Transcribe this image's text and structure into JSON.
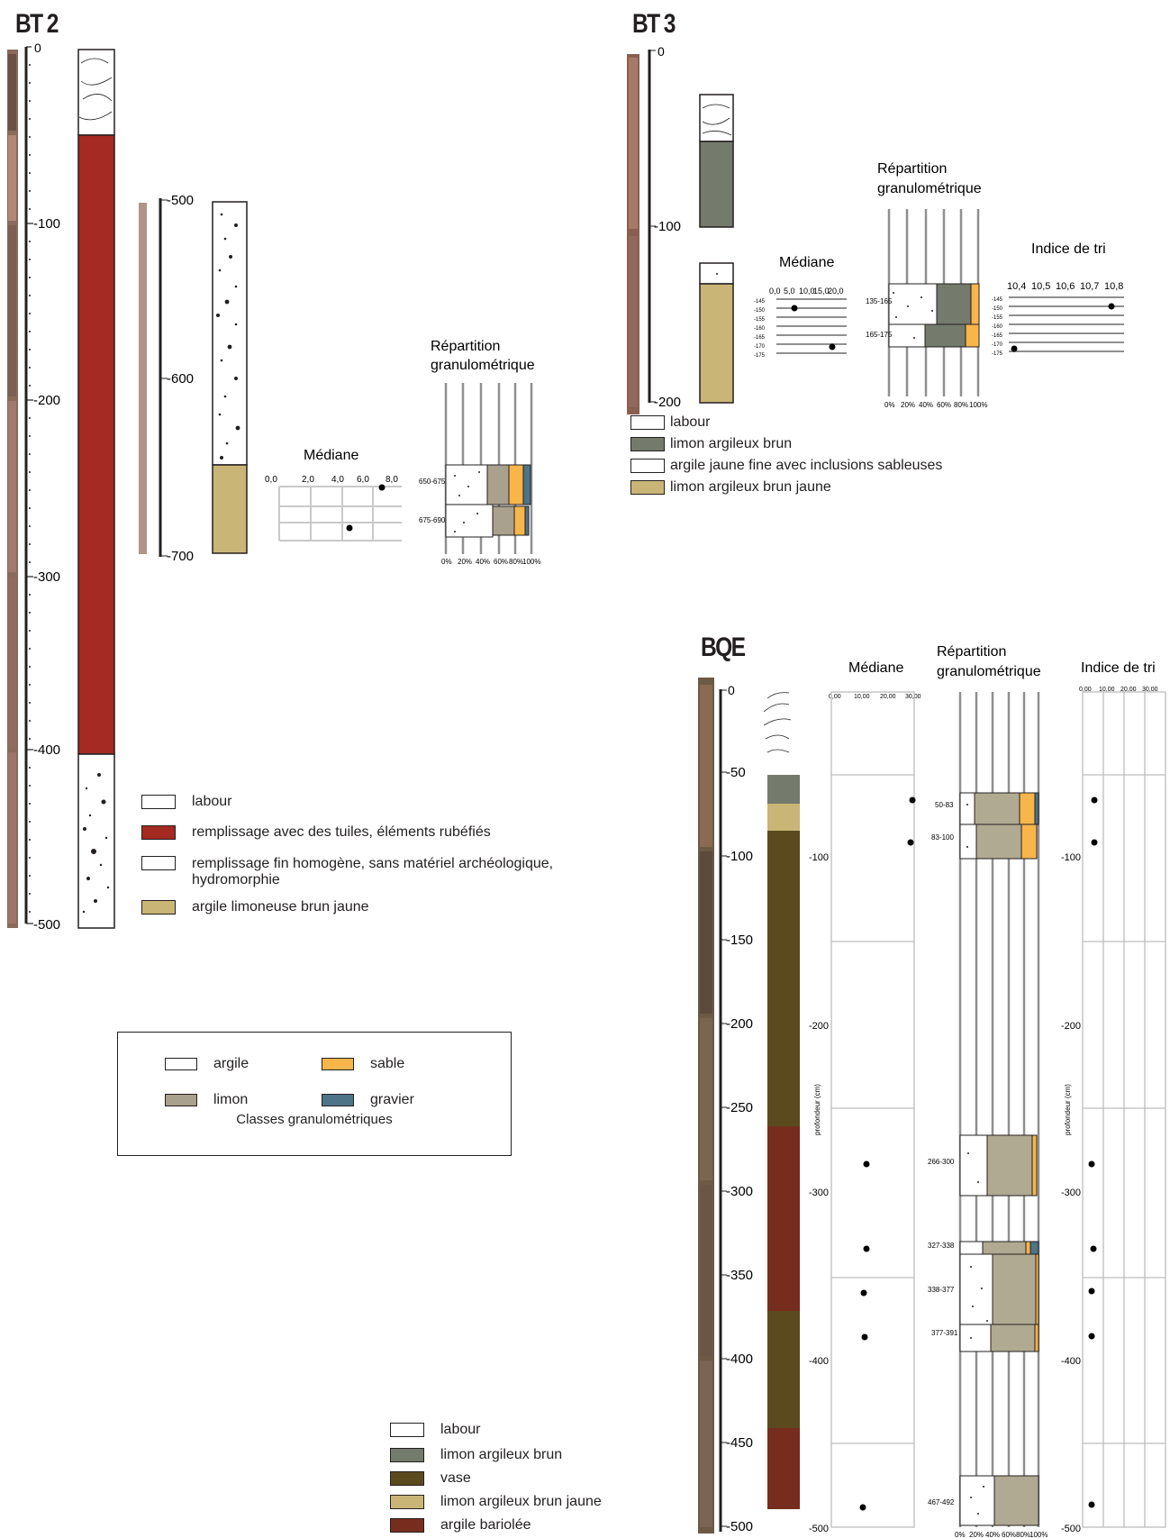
{
  "colors": {
    "red_fill": "#a52a22",
    "tan_fill": "#c9b676",
    "olive_fill": "#747a6c",
    "mud_fill": "#5a4a1d",
    "brick_fill": "#772d1d",
    "argile": "#ffffff",
    "limon": "#a9a08d",
    "sable": "#f8b54a",
    "gravier": "#4d7487",
    "bqe_limon": "#b0aa92",
    "bqe_argile_light": "#d4c78f"
  },
  "bt2": {
    "title": "BT 2",
    "depth_ticks": [
      "0",
      "-100",
      "-200",
      "-300",
      "-400",
      "-500"
    ],
    "detail_ticks": [
      "-500",
      "-600",
      "-700"
    ],
    "mediane": {
      "title": "Médiane",
      "ticks": [
        "0,0",
        "2,0",
        "4,0",
        "6,0",
        "8,0"
      ]
    },
    "repartition": {
      "title_line1": "Répartition",
      "title_line2": "granulométrique",
      "rows": [
        "650-675",
        "675-690"
      ],
      "x_ticks": [
        "0%",
        "20%",
        "40%",
        "60%",
        "80%",
        "100%"
      ]
    },
    "legend": [
      {
        "icon": "labour-icon",
        "label": "labour"
      },
      {
        "icon": "red-fill",
        "label": "remplissage avec des tuiles,  éléments rubéfiés"
      },
      {
        "icon": "dots-fill",
        "label": "remplissage fin homogène, sans matériel archéologique,",
        "label2": "hydromorphie"
      },
      {
        "icon": "tan-fill",
        "label": "argile limoneuse brun jaune"
      }
    ]
  },
  "bt3": {
    "title": "BT 3",
    "depth_ticks": [
      "0",
      "-100",
      "-200"
    ],
    "mediane": {
      "title": "Médiane",
      "ticks": [
        "0,0",
        "5,0",
        "10,0",
        "15,0",
        "20,0"
      ],
      "rows": [
        "-145",
        "-150",
        "-155",
        "-160",
        "-165",
        "-170",
        "-175"
      ]
    },
    "repartition": {
      "title_line1": "Répartition",
      "title_line2": "granulométrique",
      "rows": [
        "135-165",
        "165-175"
      ],
      "x_ticks": [
        "0%",
        "20%",
        "40%",
        "60%",
        "80%",
        "100%"
      ]
    },
    "tri": {
      "title": "Indice de tri",
      "ticks": [
        "10,4",
        "10,5",
        "10,6",
        "10,7",
        "10,8"
      ],
      "rows": [
        "-145",
        "-150",
        "-155",
        "-160",
        "-165",
        "-170",
        "-175"
      ]
    },
    "legend": [
      {
        "icon": "labour-icon",
        "label": "labour"
      },
      {
        "icon": "olive-fill",
        "label": "limon argileux brun"
      },
      {
        "icon": "white-fill",
        "label": "argile jaune fine avec inclusions sableuses"
      },
      {
        "icon": "tan-fill",
        "label": "limon argileux brun jaune"
      }
    ]
  },
  "classes": {
    "caption": "Classes granulométriques",
    "items": [
      {
        "label": "argile",
        "color": "#ffffff"
      },
      {
        "label": "sable",
        "color": "#f8b54a"
      },
      {
        "label": "limon",
        "color": "#a9a08d"
      },
      {
        "label": "gravier",
        "color": "#4d7487"
      }
    ]
  },
  "bqe": {
    "title": "BQE",
    "depth_ticks": [
      "0",
      "-50",
      "-100",
      "-150",
      "-200",
      "-250",
      "-300",
      "-350",
      "-400",
      "-450",
      "-500"
    ],
    "mediane": {
      "title": "Médiane",
      "ticks": [
        "0,00",
        "10,00",
        "20,00",
        "30,00"
      ],
      "y_ticks": [
        "-100",
        "-200",
        "-300",
        "-400",
        "-500"
      ],
      "y_label": "profondeur (cm)"
    },
    "repartition": {
      "title_line1": "Répartition",
      "title_line2": "granulométrique",
      "rows": [
        "50-83",
        "83-100",
        "266-300",
        "327-338",
        "338-377",
        "377-391",
        "467-492"
      ],
      "x_ticks": [
        "0%",
        "20%",
        "40%",
        "60%",
        "80%",
        "100%"
      ]
    },
    "tri": {
      "title": "Indice de tri",
      "ticks": [
        "0,00",
        "10,00",
        "20,00",
        "30,00"
      ],
      "y_ticks": [
        "-100",
        "-200",
        "-300",
        "-400",
        "-500"
      ],
      "y_label": "profondeur (cm)"
    },
    "legend": [
      {
        "icon": "labour-icon",
        "label": "labour"
      },
      {
        "icon": "olive-fill",
        "label": "limon argileux brun"
      },
      {
        "icon": "mud-fill",
        "label": "vase"
      },
      {
        "icon": "tan-fill",
        "label": "limon argileux brun jaune"
      },
      {
        "icon": "brick-fill",
        "label": "argile bariolée"
      }
    ]
  }
}
